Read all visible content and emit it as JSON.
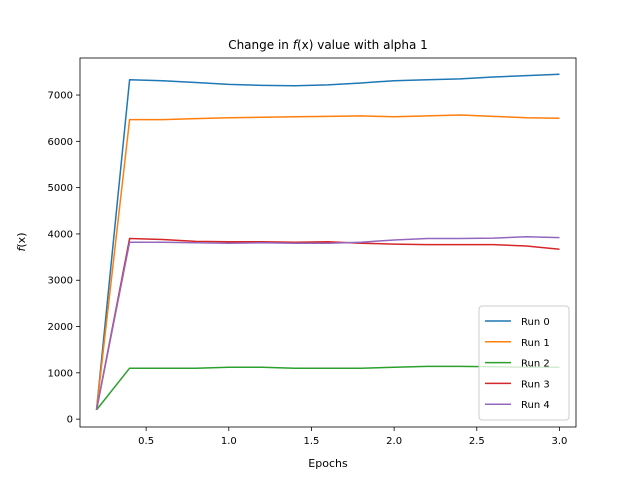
{
  "chart_data": {
    "type": "line",
    "title_prefix": "Change in ",
    "title_fx": "f",
    "title_fx_arg": "(x)",
    "title_suffix": " value with alpha 1",
    "xlabel": "Epochs",
    "ylabel_f": "f",
    "ylabel_arg": "(x)",
    "xlim": [
      0.1,
      3.1
    ],
    "ylim": [
      -170,
      7800
    ],
    "xticks": [
      0.5,
      1.0,
      1.5,
      2.0,
      2.5,
      3.0
    ],
    "xtick_labels": [
      "0.5",
      "1.0",
      "1.5",
      "2.0",
      "2.5",
      "3.0"
    ],
    "yticks": [
      0,
      1000,
      2000,
      3000,
      4000,
      5000,
      6000,
      7000
    ],
    "ytick_labels": [
      "0",
      "1000",
      "2000",
      "3000",
      "4000",
      "5000",
      "6000",
      "7000"
    ],
    "grid": false,
    "legend_position": "lower-right",
    "x": [
      0.2,
      0.4,
      0.6,
      0.8,
      1.0,
      1.2,
      1.4,
      1.6,
      1.8,
      2.0,
      2.2,
      2.4,
      2.6,
      2.8,
      3.0
    ],
    "series": [
      {
        "name": "Run 0",
        "color": "#1f77b4",
        "values": [
          200,
          7330,
          7310,
          7270,
          7230,
          7210,
          7200,
          7220,
          7260,
          7310,
          7330,
          7350,
          7390,
          7420,
          7450
        ]
      },
      {
        "name": "Run 1",
        "color": "#ff7f0e",
        "values": [
          200,
          6470,
          6470,
          6490,
          6510,
          6520,
          6530,
          6540,
          6550,
          6530,
          6550,
          6570,
          6540,
          6510,
          6500
        ]
      },
      {
        "name": "Run 2",
        "color": "#2ca02c",
        "values": [
          200,
          1100,
          1100,
          1100,
          1120,
          1120,
          1100,
          1100,
          1100,
          1120,
          1140,
          1140,
          1130,
          1120,
          1120
        ]
      },
      {
        "name": "Run 3",
        "color": "#d62728",
        "values": [
          200,
          3900,
          3880,
          3840,
          3830,
          3830,
          3820,
          3830,
          3800,
          3780,
          3770,
          3770,
          3770,
          3740,
          3670
        ]
      },
      {
        "name": "Run 4",
        "color": "#9467bd",
        "values": [
          200,
          3820,
          3820,
          3810,
          3800,
          3810,
          3800,
          3800,
          3820,
          3870,
          3900,
          3900,
          3910,
          3940,
          3920
        ]
      }
    ]
  }
}
